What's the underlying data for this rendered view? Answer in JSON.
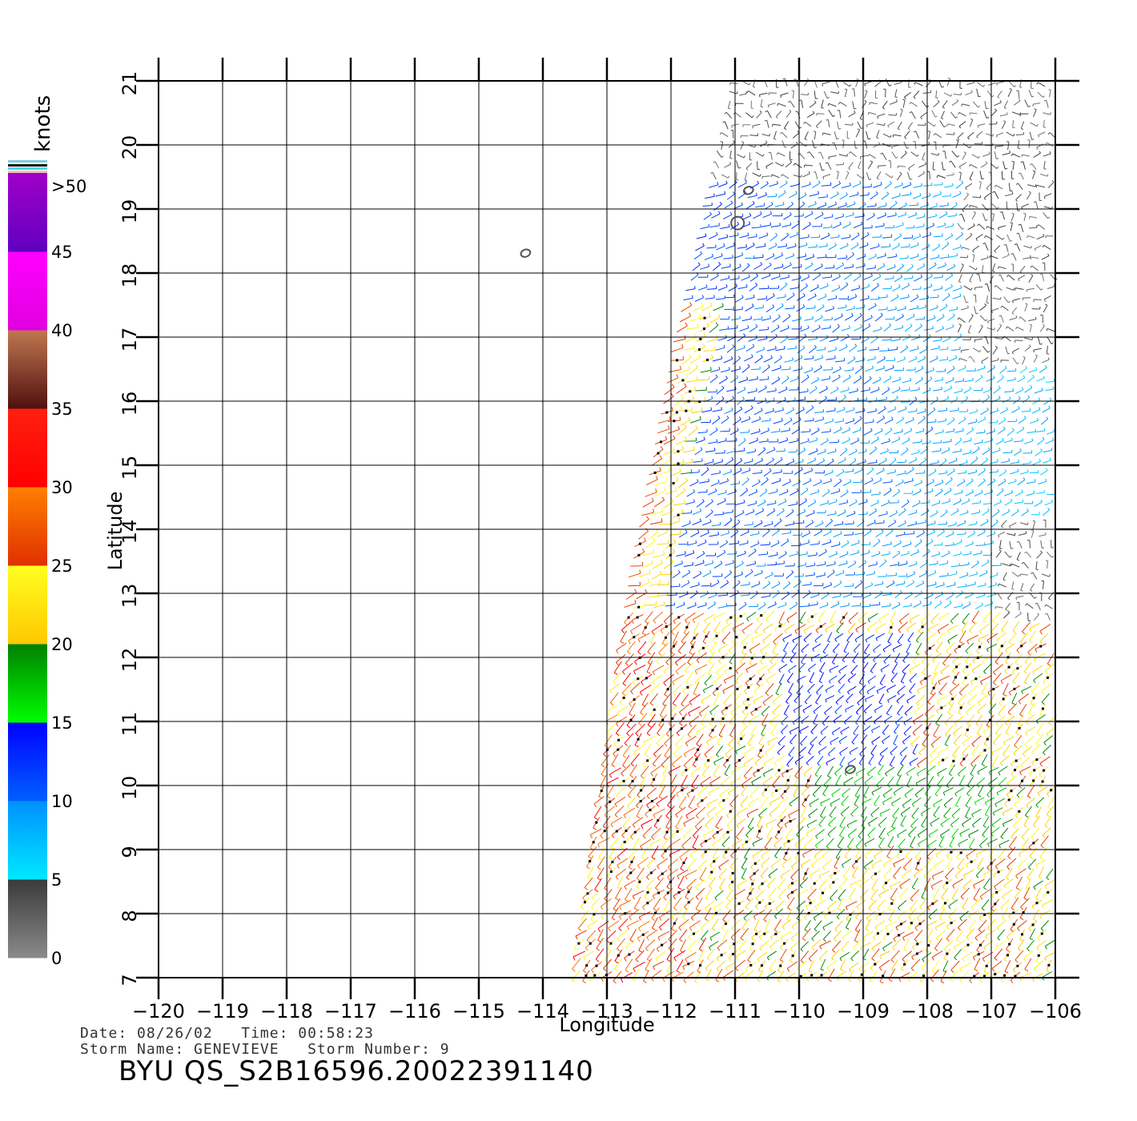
{
  "colorbar": {
    "unit": "knots",
    "bands": [
      {
        "from": 0,
        "to": 5,
        "top": "#3a3a3a",
        "bottom": "#8a8a8a"
      },
      {
        "from": 5,
        "to": 10,
        "top": "#0090ff",
        "bottom": "#00e8ff"
      },
      {
        "from": 10,
        "to": 15,
        "top": "#0000ff",
        "bottom": "#0060ff"
      },
      {
        "from": 15,
        "to": 20,
        "top": "#008000",
        "bottom": "#00ff00"
      },
      {
        "from": 20,
        "to": 25,
        "top": "#ffff20",
        "bottom": "#ffc800"
      },
      {
        "from": 25,
        "to": 30,
        "top": "#ff8000",
        "bottom": "#e03000"
      },
      {
        "from": 30,
        "to": 35,
        "top": "#ff2010",
        "bottom": "#ff0000"
      },
      {
        "from": 35,
        "to": 40,
        "top": "#c07850",
        "bottom": "#501010"
      },
      {
        "from": 40,
        "to": 45,
        "top": "#ff00ff",
        "bottom": "#e000e0"
      },
      {
        "from": 45,
        "to": 50,
        "top": "#a000c8",
        "bottom": "#6000c0"
      }
    ],
    "labels": [
      "0",
      "5",
      "10",
      "15",
      "20",
      "25",
      "30",
      "35",
      "40",
      "45",
      ">50"
    ]
  },
  "map": {
    "lon_min": -120,
    "lon_max": -106,
    "lat_min": 7,
    "lat_max": 21,
    "lon_labels": [
      "−120",
      "−119",
      "−118",
      "−117",
      "−116",
      "−115",
      "−114",
      "−113",
      "−112",
      "−111",
      "−110",
      "−109",
      "−108",
      "−107",
      "−106"
    ],
    "lat_labels": [
      "7",
      "8",
      "9",
      "10",
      "11",
      "12",
      "13",
      "14",
      "15",
      "16",
      "17",
      "18",
      "19",
      "20",
      "21"
    ],
    "xlabel": "Longitude",
    "ylabel": "Latitude",
    "islands": [
      {
        "lon": -114.27,
        "lat": 18.31
      },
      {
        "lon": -110.79,
        "lat": 19.29
      },
      {
        "lon": -110.96,
        "lat": 18.78
      },
      {
        "lon": -109.2,
        "lat": 10.25
      }
    ],
    "swath": {
      "west_edge": [
        [
          -113.5,
          7.0
        ],
        [
          -112.8,
          12.0
        ],
        [
          -111.95,
          16.5
        ],
        [
          -111.0,
          21.0
        ]
      ],
      "east_edge": [
        [
          -105.9,
          7.0
        ],
        [
          -105.9,
          21.0
        ]
      ]
    },
    "wind_regimes": [
      {
        "lat_from": 19.5,
        "lat_to": 21,
        "speed_kt": 3,
        "dir_deg": 0,
        "note": "light-variable"
      },
      {
        "lat_from": 13,
        "lat_to": 19.5,
        "speed_kt": 11,
        "dir_deg": 80
      },
      {
        "lat_from": 7,
        "lat_to": 13,
        "speed_kt": 22,
        "dir_deg": 225
      }
    ]
  },
  "footer": {
    "date_line": "Date: 08/26/02   Time: 00:58:23",
    "storm_line": "Storm Name: GENEVIEVE   Storm Number: 9",
    "title": "BYU QS_S2B16596.20022391140"
  }
}
